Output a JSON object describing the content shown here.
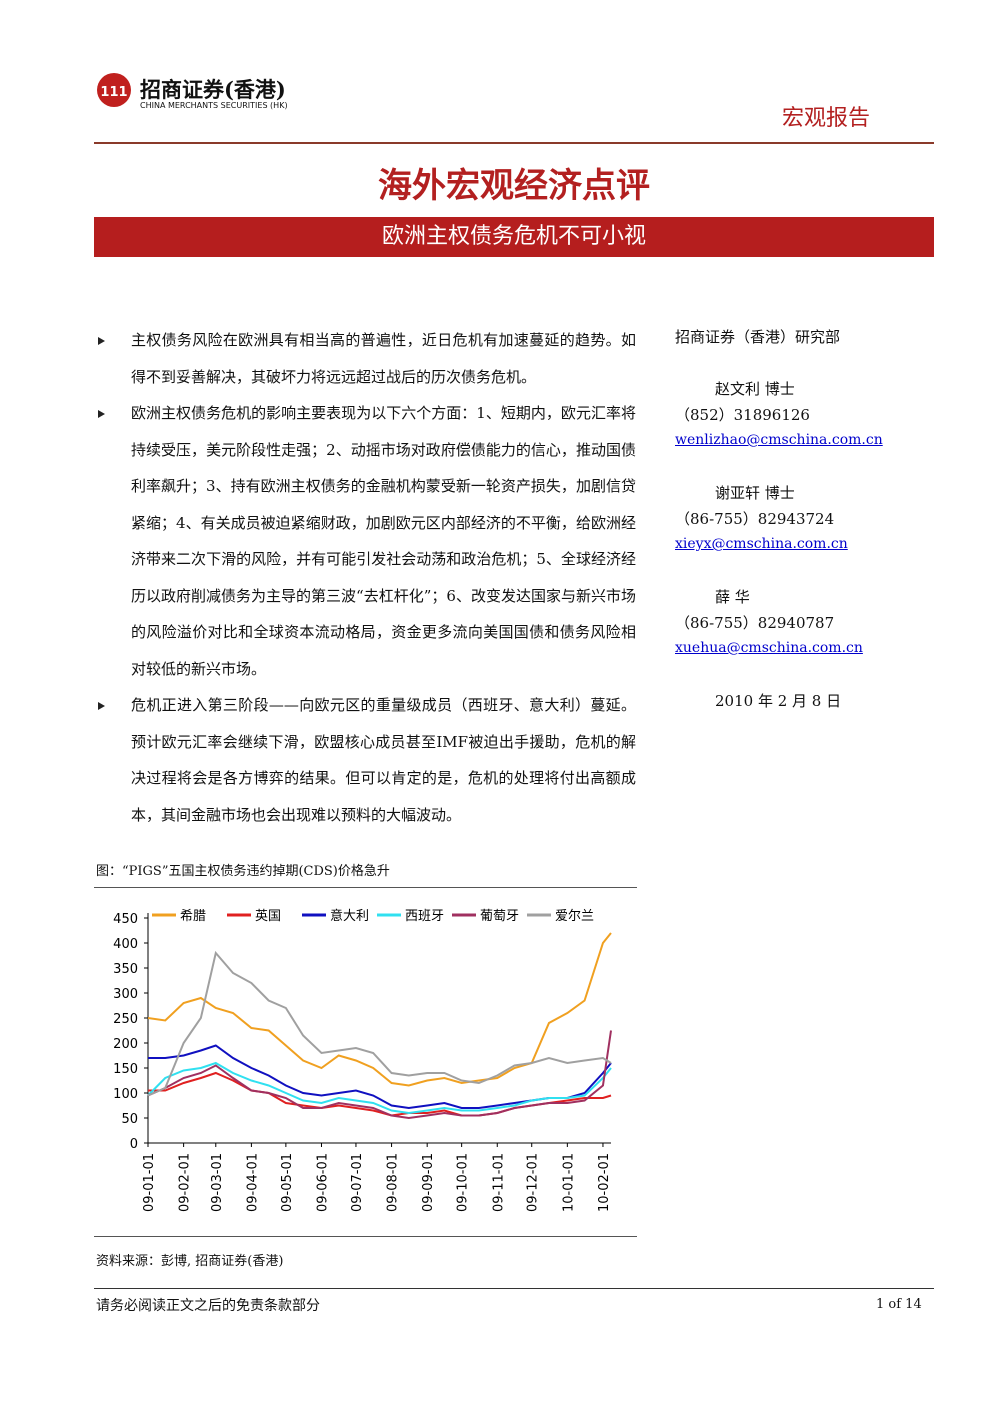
{
  "header": {
    "logo_cn": "招商证券(香港)",
    "logo_en": "CHINA MERCHANTS SECURITIES (HK)",
    "report_type": "宏观报告"
  },
  "title": "海外宏观经济点评",
  "subtitle": "欧洲主权债务危机不可小视",
  "bullets": [
    "主权债务风险在欧洲具有相当高的普遍性，近日危机有加速蔓延的趋势。如得不到妥善解决，其破坏力将远远超过战后的历次债务危机。",
    "欧洲主权债务危机的影响主要表现为以下六个方面：1、短期内，欧元汇率将持续受压，美元阶段性走强；2、动摇市场对政府偿债能力的信心，推动国债利率飙升；3、持有欧洲主权债务的金融机构蒙受新一轮资产损失，加剧信贷紧缩；4、有关成员被迫紧缩财政，加剧欧元区内部经济的不平衡，给欧洲经济带来二次下滑的风险，并有可能引发社会动荡和政治危机；5、全球经济经历以政府削减债务为主导的第三波“去杠杆化”；6、改变发达国家与新兴市场的风险溢价对比和全球资本流动格局，资金更多流向美国国债和债务风险相对较低的新兴市场。",
    "危机正进入第三阶段——向欧元区的重量级成员（西班牙、意大利）蔓延。预计欧元汇率会继续下滑，欧盟核心成员甚至IMF被迫出手援助，危机的解决过程将会是各方博弈的结果。但可以肯定的是，危机的处理将付出高额成本，其间金融市场也会出现难以预料的大幅波动。"
  ],
  "sidebar": {
    "dept": "招商证券（香港）研究部",
    "analysts": [
      {
        "name": "赵文利 博士",
        "phone": "（852）31896126",
        "email": "wenlizhao@cmschina.com.cn"
      },
      {
        "name": "谢亚轩 博士",
        "phone": "（86-755）82943724",
        "email": "xieyx@cmschina.com.cn"
      },
      {
        "name": "薛 华",
        "phone": "（86-755）82940787",
        "email": "xuehua@cmschina.com.cn"
      }
    ],
    "date": "2010 年 2 月 8 日"
  },
  "figure": {
    "caption": "图：“PIGS”五国主权债务违约掉期(CDS)价格急升",
    "source": "资料来源：彭博, 招商证券(香港)"
  },
  "footer": {
    "disclaimer": "请务必阅读正文之后的免责条款部分",
    "page": "1 of 14"
  },
  "chart_data": {
    "type": "line",
    "x": [
      "09-01-01",
      "09-01-16",
      "09-02-01",
      "09-02-16",
      "09-03-01",
      "09-03-16",
      "09-04-01",
      "09-04-16",
      "09-05-01",
      "09-05-16",
      "09-06-01",
      "09-06-16",
      "09-07-01",
      "09-07-16",
      "09-08-01",
      "09-08-16",
      "09-09-01",
      "09-09-16",
      "09-10-01",
      "09-10-16",
      "09-11-01",
      "09-11-16",
      "09-12-01",
      "09-12-16",
      "10-01-01",
      "10-01-16",
      "10-02-01",
      "10-02-08"
    ],
    "series": [
      {
        "name": "希腊",
        "color": "#f0a020",
        "values": [
          250,
          245,
          280,
          290,
          270,
          260,
          230,
          225,
          195,
          165,
          150,
          175,
          165,
          150,
          120,
          115,
          125,
          130,
          120,
          125,
          130,
          150,
          160,
          240,
          260,
          285,
          400,
          420
        ]
      },
      {
        "name": "英国",
        "color": "#e02020",
        "values": [
          105,
          105,
          120,
          130,
          140,
          125,
          105,
          100,
          80,
          75,
          70,
          75,
          70,
          65,
          55,
          60,
          60,
          65,
          55,
          55,
          60,
          70,
          75,
          80,
          85,
          90,
          90,
          95
        ]
      },
      {
        "name": "意大利",
        "color": "#1010c0",
        "values": [
          170,
          170,
          175,
          185,
          195,
          170,
          150,
          135,
          115,
          100,
          95,
          100,
          105,
          95,
          75,
          70,
          75,
          80,
          70,
          70,
          75,
          80,
          85,
          90,
          90,
          100,
          140,
          160
        ]
      },
      {
        "name": "西班牙",
        "color": "#30e0f0",
        "values": [
          95,
          130,
          145,
          150,
          160,
          140,
          125,
          115,
          100,
          85,
          80,
          90,
          85,
          80,
          65,
          60,
          65,
          70,
          65,
          65,
          70,
          75,
          85,
          90,
          90,
          95,
          130,
          150
        ]
      },
      {
        "name": "葡萄牙",
        "color": "#a03060",
        "values": [
          95,
          110,
          130,
          140,
          155,
          130,
          105,
          100,
          90,
          70,
          70,
          80,
          75,
          70,
          55,
          50,
          55,
          60,
          55,
          55,
          60,
          70,
          75,
          80,
          80,
          85,
          115,
          225
        ]
      },
      {
        "name": "爱尔兰",
        "color": "#a0a0a0",
        "values": [
          95,
          110,
          200,
          250,
          380,
          340,
          320,
          285,
          270,
          215,
          180,
          185,
          190,
          180,
          140,
          135,
          140,
          140,
          125,
          120,
          135,
          155,
          160,
          170,
          160,
          165,
          170,
          160
        ]
      }
    ],
    "xlim": [
      "09-01-01",
      "10-02-08"
    ],
    "xticks": [
      "09-01-01",
      "09-02-01",
      "09-03-01",
      "09-04-01",
      "09-05-01",
      "09-06-01",
      "09-07-01",
      "09-08-01",
      "09-09-01",
      "09-10-01",
      "09-11-01",
      "09-12-01",
      "10-01-01",
      "10-02-01"
    ],
    "ylim": [
      0,
      450
    ],
    "yticks": [
      0,
      50,
      100,
      150,
      200,
      250,
      300,
      350,
      400,
      450
    ],
    "legend": "top"
  }
}
